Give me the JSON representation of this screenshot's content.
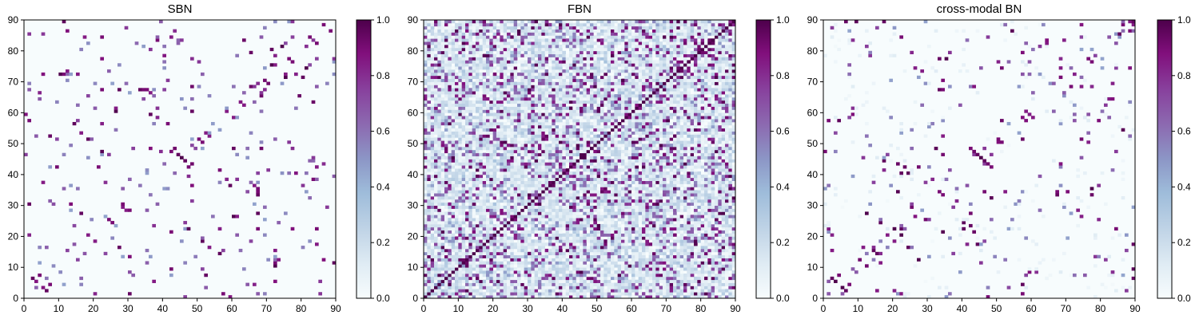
{
  "chart_data": [
    {
      "type": "heatmap",
      "title": "SBN",
      "xlim": [
        0,
        90
      ],
      "ylim": [
        0,
        90
      ],
      "xticks": [
        "0",
        "10",
        "20",
        "30",
        "40",
        "50",
        "60",
        "70",
        "80",
        "90"
      ],
      "yticks": [
        "0",
        "10",
        "20",
        "30",
        "40",
        "50",
        "60",
        "70",
        "80",
        "90"
      ],
      "colorbar": {
        "range": [
          0,
          1
        ],
        "ticks": [
          "0.0",
          "0.2",
          "0.4",
          "0.6",
          "0.8",
          "1.0"
        ],
        "colormap": "BuPu"
      },
      "grid_size": 90,
      "density": 0.035,
      "seed": 11,
      "lowtint": 0.012,
      "values": [
        [
          45,
          45,
          1.0
        ],
        [
          46,
          44,
          0.95
        ],
        [
          44,
          46,
          0.95
        ],
        [
          47,
          42,
          0.9
        ],
        [
          42,
          47,
          0.9
        ],
        [
          48,
          43,
          0.92
        ],
        [
          43,
          48,
          0.92
        ],
        [
          33,
          67,
          0.95
        ],
        [
          34,
          67,
          0.9
        ],
        [
          35,
          67,
          0.9
        ],
        [
          36,
          66,
          0.85
        ],
        [
          67,
          33,
          0.95
        ],
        [
          67,
          34,
          0.9
        ],
        [
          11,
          72,
          0.9
        ],
        [
          12,
          73,
          0.85
        ],
        [
          15,
          72,
          0.85
        ],
        [
          72,
          11,
          0.9
        ],
        [
          73,
          12,
          0.85
        ],
        [
          72,
          15,
          0.85
        ],
        [
          6,
          2,
          0.95
        ],
        [
          7,
          4,
          0.9
        ],
        [
          2,
          6,
          0.95
        ],
        [
          4,
          7,
          0.9
        ],
        [
          57,
          1,
          0.9
        ],
        [
          1,
          57,
          0.9
        ],
        [
          22,
          84,
          0.9
        ],
        [
          84,
          22,
          0.9
        ],
        [
          42,
          84,
          0.85
        ],
        [
          84,
          42,
          0.85
        ],
        [
          88,
          86,
          0.9
        ],
        [
          86,
          88,
          0.9
        ],
        [
          50,
          51,
          0.9
        ],
        [
          51,
          50,
          0.9
        ],
        [
          53,
          52,
          0.85
        ],
        [
          52,
          53,
          0.85
        ],
        [
          60,
          58,
          0.85
        ],
        [
          58,
          60,
          0.85
        ],
        [
          63,
          62,
          0.85
        ],
        [
          62,
          63,
          0.85
        ],
        [
          72,
          75,
          0.85
        ],
        [
          75,
          72,
          0.85
        ],
        [
          76,
          77,
          0.9
        ],
        [
          77,
          76,
          0.9
        ],
        [
          18,
          20,
          0.85
        ],
        [
          20,
          18,
          0.85
        ],
        [
          24,
          25,
          0.9
        ],
        [
          25,
          24,
          0.9
        ],
        [
          29,
          28,
          0.85
        ],
        [
          28,
          29,
          0.85
        ]
      ]
    },
    {
      "type": "heatmap",
      "title": "FBN",
      "xlim": [
        0,
        90
      ],
      "ylim": [
        0,
        90
      ],
      "xticks": [
        "0",
        "10",
        "20",
        "30",
        "40",
        "50",
        "60",
        "70",
        "80",
        "90"
      ],
      "yticks": [
        "0",
        "10",
        "20",
        "30",
        "40",
        "50",
        "60",
        "70",
        "80",
        "90"
      ],
      "colorbar": {
        "range": [
          0,
          1
        ],
        "ticks": [
          "0.0",
          "0.2",
          "0.4",
          "0.6",
          "0.8",
          "1.0"
        ],
        "colormap": "BuPu"
      },
      "grid_size": 90,
      "density": 0.22,
      "seed": 29,
      "lowtint": 0.22,
      "values": [
        [
          45,
          46,
          1.0
        ],
        [
          46,
          45,
          1.0
        ],
        [
          48,
          44,
          0.95
        ],
        [
          44,
          48,
          0.95
        ],
        [
          50,
          47,
          0.95
        ],
        [
          47,
          50,
          0.95
        ],
        [
          10,
          12,
          0.95
        ],
        [
          12,
          10,
          0.95
        ],
        [
          80,
          82,
          0.95
        ],
        [
          82,
          80,
          0.95
        ],
        [
          85,
          88,
          0.9
        ],
        [
          88,
          85,
          0.9
        ],
        [
          74,
          76,
          0.9
        ],
        [
          76,
          74,
          0.9
        ],
        [
          20,
          22,
          0.9
        ],
        [
          22,
          20,
          0.9
        ],
        [
          30,
          32,
          0.9
        ],
        [
          32,
          30,
          0.9
        ]
      ]
    },
    {
      "type": "heatmap",
      "title": "cross-modal BN",
      "xlim": [
        0,
        90
      ],
      "ylim": [
        0,
        90
      ],
      "xticks": [
        "0",
        "10",
        "20",
        "30",
        "40",
        "50",
        "60",
        "70",
        "80",
        "90"
      ],
      "yticks": [
        "0",
        "10",
        "20",
        "30",
        "40",
        "50",
        "60",
        "70",
        "80",
        "90"
      ],
      "colorbar": {
        "range": [
          0,
          1
        ],
        "ticks": [
          "0.0",
          "0.2",
          "0.4",
          "0.6",
          "0.8",
          "1.0"
        ],
        "colormap": "BuPu"
      },
      "grid_size": 90,
      "density": 0.03,
      "seed": 47,
      "lowtint": 0.0,
      "values": [
        [
          45,
          45,
          1.0
        ],
        [
          46,
          44,
          0.95
        ],
        [
          44,
          46,
          0.95
        ],
        [
          47,
          43,
          0.92
        ],
        [
          43,
          47,
          0.92
        ],
        [
          48,
          42,
          0.9
        ],
        [
          42,
          48,
          0.9
        ],
        [
          33,
          67,
          0.95
        ],
        [
          34,
          67,
          0.9
        ],
        [
          67,
          33,
          0.95
        ],
        [
          67,
          34,
          0.9
        ],
        [
          71,
          68,
          0.9
        ],
        [
          68,
          71,
          0.9
        ],
        [
          6,
          2,
          0.95
        ],
        [
          7,
          4,
          0.9
        ],
        [
          2,
          6,
          0.95
        ],
        [
          4,
          7,
          0.9
        ],
        [
          57,
          1,
          0.9
        ],
        [
          1,
          57,
          0.9
        ],
        [
          22,
          84,
          0.9
        ],
        [
          84,
          22,
          0.9
        ],
        [
          88,
          86,
          0.9
        ],
        [
          86,
          88,
          0.9
        ],
        [
          50,
          51,
          0.9
        ],
        [
          51,
          50,
          0.9
        ],
        [
          60,
          58,
          0.85
        ],
        [
          58,
          60,
          0.85
        ],
        [
          76,
          77,
          0.9
        ],
        [
          77,
          76,
          0.9
        ],
        [
          18,
          20,
          0.85
        ],
        [
          20,
          18,
          0.85
        ]
      ]
    }
  ]
}
